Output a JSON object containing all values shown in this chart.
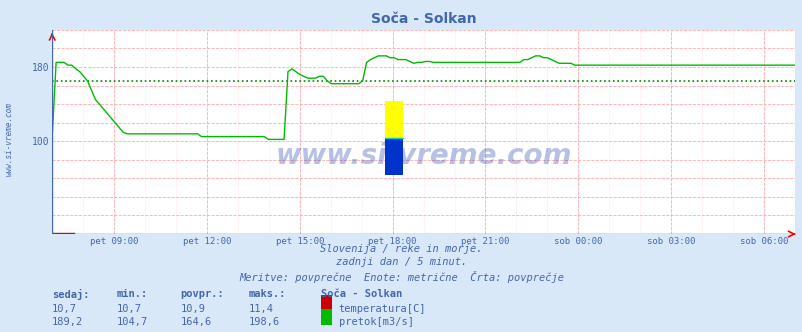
{
  "title": "Soča - Solkan",
  "bg_color": "#d8e8f8",
  "plot_bg_color": "#ffffff",
  "grid_color_major": "#ffaaaa",
  "text_color": "#4466aa",
  "x_labels": [
    "pet 09:00",
    "pet 12:00",
    "pet 15:00",
    "pet 18:00",
    "pet 21:00",
    "sob 00:00",
    "sob 03:00",
    "sob 06:00"
  ],
  "x_ticks_norm": [
    0.0833,
    0.2083,
    0.3333,
    0.4583,
    0.5833,
    0.7083,
    0.8333,
    0.9583
  ],
  "y_min": 0,
  "y_max": 220,
  "y_ticks": [
    100,
    180
  ],
  "avg_line_value": 164.6,
  "avg_line_color": "#008800",
  "flow_color": "#00bb00",
  "temp_color": "#cc0000",
  "watermark": "www.si-vreme.com",
  "sub_text1": "Slovenija / reke in morje.",
  "sub_text2": "zadnji dan / 5 minut.",
  "sub_text3": "Meritve: povprečne  Enote: metrične  Črta: povprečje",
  "legend_title": "Soča - Solkan",
  "legend_items": [
    {
      "label": "temperatura[C]",
      "color": "#cc0000"
    },
    {
      "label": "pretok[m3/s]",
      "color": "#00bb00"
    }
  ],
  "table_headers": [
    "sedaj:",
    "min.:",
    "povpr.:",
    "maks.:"
  ],
  "table_temp": [
    "10,7",
    "10,7",
    "10,9",
    "11,4"
  ],
  "table_flow": [
    "189,2",
    "104,7",
    "164,6",
    "198,6"
  ],
  "flow_data": [
    105,
    185,
    185,
    185,
    182,
    182,
    178,
    175,
    170,
    165,
    155,
    145,
    140,
    135,
    130,
    125,
    120,
    115,
    110,
    108,
    108,
    108,
    108,
    108,
    108,
    108,
    108,
    108,
    108,
    108,
    108,
    108,
    108,
    108,
    108,
    108,
    108,
    108,
    105,
    105,
    105,
    105,
    105,
    105,
    105,
    105,
    105,
    105,
    105,
    105,
    105,
    105,
    105,
    105,
    105,
    102,
    102,
    102,
    102,
    102,
    175,
    178,
    175,
    172,
    170,
    168,
    168,
    168,
    170,
    170,
    165,
    162,
    162,
    162,
    162,
    162,
    162,
    162,
    162,
    165,
    185,
    188,
    190,
    192,
    192,
    192,
    190,
    190,
    188,
    188,
    188,
    186,
    184,
    185,
    185,
    186,
    186,
    185,
    185,
    185,
    185,
    185,
    185,
    185,
    185,
    185,
    185,
    185,
    185,
    185,
    185,
    185,
    185,
    185,
    185,
    185,
    185,
    185,
    185,
    185,
    188,
    188,
    190,
    192,
    192,
    190,
    190,
    188,
    186,
    184,
    184,
    184,
    184,
    182,
    182,
    182,
    182,
    182,
    182,
    182,
    182,
    182,
    182,
    182,
    182,
    182,
    182,
    182,
    182,
    182,
    182,
    182,
    182,
    182,
    182,
    182,
    182,
    182,
    182,
    182,
    182,
    182,
    182,
    182,
    182,
    182,
    182,
    182,
    182,
    182,
    182,
    182,
    182,
    182,
    182,
    182,
    182,
    182,
    182,
    182,
    182,
    182,
    182,
    182,
    182,
    182,
    182,
    182,
    182,
    182
  ]
}
